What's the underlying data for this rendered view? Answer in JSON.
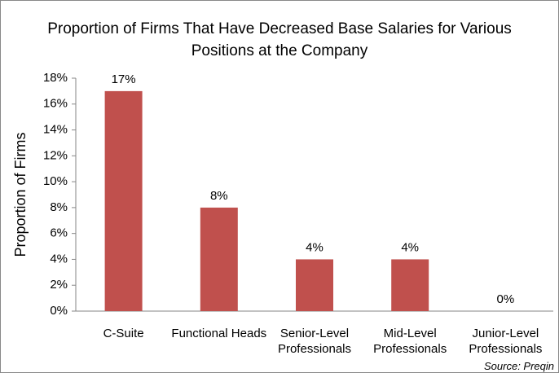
{
  "chart_data": {
    "type": "bar",
    "title": "Proportion of Firms That Have Decreased Base Salaries for Various Positions at the Company",
    "y_label": "Proportion of Firms",
    "categories": [
      "C-Suite",
      "Functional Heads",
      "Senior-Level Professionals",
      "Mid-Level Professionals",
      "Junior-Level Professionals"
    ],
    "values": [
      17,
      8,
      4,
      4,
      0
    ],
    "value_labels": [
      "17%",
      "8%",
      "4%",
      "4%",
      "0%"
    ],
    "color": "#c0504d",
    "ylim": [
      0,
      18
    ],
    "yticks": [
      {
        "value": 0,
        "label": "0%"
      },
      {
        "value": 2,
        "label": "2%"
      },
      {
        "value": 4,
        "label": "4%"
      },
      {
        "value": 6,
        "label": "6%"
      },
      {
        "value": 8,
        "label": "8%"
      },
      {
        "value": 10,
        "label": "10%"
      },
      {
        "value": 12,
        "label": "12%"
      },
      {
        "value": 14,
        "label": "14%"
      },
      {
        "value": 16,
        "label": "16%"
      },
      {
        "value": 18,
        "label": "18%"
      }
    ],
    "source": "Source: Preqin"
  }
}
